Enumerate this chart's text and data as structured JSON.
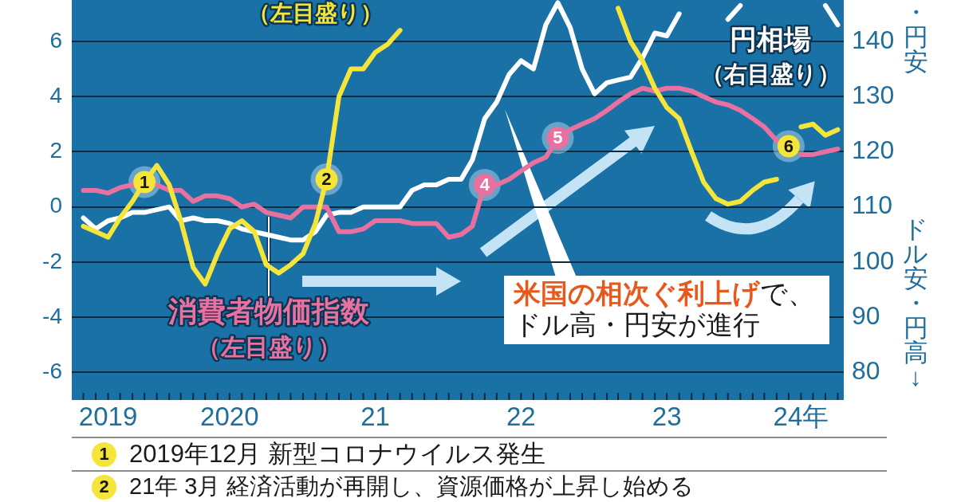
{
  "chart_data": {
    "type": "line",
    "x": [
      "2019-07",
      "2019-08",
      "2019-09",
      "2019-10",
      "2019-11",
      "2019-12",
      "2020-01",
      "2020-02",
      "2020-03",
      "2020-04",
      "2020-05",
      "2020-06",
      "2020-07",
      "2020-08",
      "2020-09",
      "2020-10",
      "2020-11",
      "2020-12",
      "2021-01",
      "2021-02",
      "2021-03",
      "2021-04",
      "2021-05",
      "2021-06",
      "2021-07",
      "2021-08",
      "2021-09",
      "2021-10",
      "2021-11",
      "2021-12",
      "2022-01",
      "2022-02",
      "2022-03",
      "2022-04",
      "2022-05",
      "2022-06",
      "2022-07",
      "2022-08",
      "2022-09",
      "2022-10",
      "2022-11",
      "2022-12",
      "2023-01",
      "2023-02",
      "2023-03",
      "2023-04",
      "2023-05",
      "2023-06",
      "2023-07",
      "2023-08",
      "2023-09",
      "2023-10",
      "2023-11",
      "2023-12",
      "2024-01",
      "2024-02",
      "2024-03",
      "2024-04",
      "2024-05",
      "2024-06",
      "2024-07",
      "2024-08",
      "2024-09"
    ],
    "series": [
      {
        "name": "（左目盛り）",
        "color": "#f5e53b",
        "values": [
          -0.7,
          -0.9,
          -1.1,
          -0.4,
          0.2,
          0.9,
          1.5,
          0.8,
          -0.5,
          -2.2,
          -2.8,
          -1.7,
          -0.8,
          -0.5,
          -0.9,
          -2.1,
          -2.4,
          -2.1,
          -1.7,
          -0.6,
          1.0,
          4.0,
          5.0,
          5.0,
          5.6,
          5.9,
          6.4,
          null,
          null,
          null,
          null,
          null,
          null,
          null,
          null,
          null,
          null,
          null,
          null,
          null,
          null,
          null,
          null,
          null,
          7.2,
          6.0,
          5.3,
          4.3,
          3.6,
          3.2,
          2.0,
          0.9,
          0.3,
          0.1,
          0.2,
          0.6,
          0.9,
          1.0,
          null,
          2.9,
          3.0,
          2.6,
          2.8
        ]
      },
      {
        "name": "消費者物価指数（左目盛り）",
        "color": "#e8719f",
        "values": [
          0.6,
          0.6,
          0.5,
          0.7,
          0.8,
          null,
          0.8,
          0.6,
          0.6,
          0.2,
          0.4,
          0.4,
          0.3,
          0.0,
          0.1,
          -0.2,
          -0.3,
          -0.4,
          0.0,
          0.0,
          0.0,
          -0.9,
          -0.9,
          -0.8,
          -0.5,
          -0.5,
          -0.5,
          -0.6,
          -0.6,
          -0.6,
          -1.1,
          -1.0,
          -0.7,
          0.8,
          0.8,
          1.0,
          1.3,
          1.6,
          1.8,
          2.5,
          2.8,
          3.0,
          3.2,
          3.5,
          3.8,
          4.1,
          4.3,
          4.2,
          4.3,
          4.3,
          4.2,
          4.0,
          3.8,
          3.7,
          3.5,
          3.2,
          2.9,
          2.4,
          null,
          1.9,
          1.9,
          2.0,
          2.1
        ]
      },
      {
        "name": "円相場（右目盛り）",
        "color": "#ffffff",
        "axis": "y2",
        "values": [
          108,
          106,
          107.5,
          108,
          109,
          109,
          109.5,
          110,
          107.5,
          108,
          107.5,
          107.5,
          107,
          106,
          105.5,
          105,
          104.5,
          104,
          104,
          105.5,
          108.5,
          109,
          109,
          110,
          110,
          110,
          110,
          113,
          114,
          114,
          115,
          115,
          118.5,
          126,
          129,
          134,
          136.5,
          135,
          143,
          147,
          142.5,
          135,
          130.5,
          132.5,
          133,
          133.5,
          137,
          141.5,
          141,
          145,
          null,
          null,
          null,
          144,
          146.5,
          null,
          null,
          null,
          null,
          null,
          null,
          146.5,
          143
        ]
      }
    ],
    "xlim": [
      "2019-06-02",
      "2024-09-16"
    ],
    "xticks": [
      {
        "value": "2019-07",
        "label": null
      },
      {
        "value": "2019-08",
        "label": null
      },
      {
        "value": "2019-09",
        "label": "2019"
      },
      {
        "value": "2019-10",
        "label": null
      },
      {
        "value": "2019-11",
        "label": null
      },
      {
        "value": "2019-12",
        "label": null
      },
      {
        "value": "2020-01",
        "label": null
      },
      {
        "value": "2020-02",
        "label": null
      },
      {
        "value": "2020-03",
        "label": null
      },
      {
        "value": "2020-04",
        "label": null
      },
      {
        "value": "2020-05",
        "label": null
      },
      {
        "value": "2020-06",
        "label": null
      },
      {
        "value": "2020-07",
        "label": "2020"
      },
      {
        "value": "2020-08",
        "label": null
      },
      {
        "value": "2020-09",
        "label": null
      },
      {
        "value": "2020-10",
        "label": null
      },
      {
        "value": "2020-11",
        "label": null
      },
      {
        "value": "2020-12",
        "label": null
      },
      {
        "value": "2021-01",
        "label": null
      },
      {
        "value": "2021-02",
        "label": null
      },
      {
        "value": "2021-03",
        "label": null
      },
      {
        "value": "2021-04",
        "label": null
      },
      {
        "value": "2021-05",
        "label": null
      },
      {
        "value": "2021-06",
        "label": null
      },
      {
        "value": "2021-07",
        "label": "21"
      },
      {
        "value": "2021-08",
        "label": null
      },
      {
        "value": "2021-09",
        "label": null
      },
      {
        "value": "2021-10",
        "label": null
      },
      {
        "value": "2021-11",
        "label": null
      },
      {
        "value": "2021-12",
        "label": null
      },
      {
        "value": "2022-01",
        "label": null
      },
      {
        "value": "2022-02",
        "label": null
      },
      {
        "value": "2022-03",
        "label": null
      },
      {
        "value": "2022-04",
        "label": null
      },
      {
        "value": "2022-05",
        "label": null
      },
      {
        "value": "2022-06",
        "label": null
      },
      {
        "value": "2022-07",
        "label": "22"
      },
      {
        "value": "2022-08",
        "label": null
      },
      {
        "value": "2022-09",
        "label": null
      },
      {
        "value": "2022-10",
        "label": null
      },
      {
        "value": "2022-11",
        "label": null
      },
      {
        "value": "2022-12",
        "label": null
      },
      {
        "value": "2023-01",
        "label": null
      },
      {
        "value": "2023-02",
        "label": null
      },
      {
        "value": "2023-03",
        "label": null
      },
      {
        "value": "2023-04",
        "label": null
      },
      {
        "value": "2023-05",
        "label": null
      },
      {
        "value": "2023-06",
        "label": null
      },
      {
        "value": "2023-07",
        "label": "23"
      },
      {
        "value": "2023-08",
        "label": null
      },
      {
        "value": "2023-09",
        "label": null
      },
      {
        "value": "2023-10",
        "label": null
      },
      {
        "value": "2023-11",
        "label": null
      },
      {
        "value": "2023-12",
        "label": null
      },
      {
        "value": "2024-01",
        "label": null
      },
      {
        "value": "2024-02",
        "label": null
      },
      {
        "value": "2024-03",
        "label": null
      },
      {
        "value": "2024-04",
        "label": null
      },
      {
        "value": "2024-05",
        "label": null
      },
      {
        "value": "2024-06",
        "label": "24年"
      },
      {
        "value": "2024-07",
        "label": null
      },
      {
        "value": "2024-08",
        "label": null
      },
      {
        "value": "2024-09",
        "label": null
      }
    ],
    "ylim": [
      -7,
      7.5
    ],
    "yticks": [
      -6,
      -4,
      -2,
      0,
      2,
      4,
      6
    ],
    "y2lim": [
      75,
      147.5
    ],
    "y2ticks": [
      80,
      90,
      100,
      110,
      120,
      130,
      140
    ],
    "y2label": "ドル安・円高↓",
    "grid": "y",
    "marker": "none",
    "line_style": "solid",
    "annotations": [
      {
        "text": "1",
        "x": "2019-12",
        "y": 0.9
      },
      {
        "text": "2",
        "x": "2021-03",
        "y": 1.0
      },
      {
        "text": "4",
        "x": "2022-04",
        "y": 0.8
      },
      {
        "text": "5",
        "x": "2022-10",
        "y": 2.5
      },
      {
        "text": "6",
        "x": "2024-05",
        "y": 2.2
      },
      "・円安",
      "米国の相次ぐ利上げ",
      "で、",
      "ドル高・円安が進行",
      "2019年12月 新型コロナウイルス発生",
      "21年 3月 経済活動が再開し、資源価格が上昇し始める"
    ]
  }
}
